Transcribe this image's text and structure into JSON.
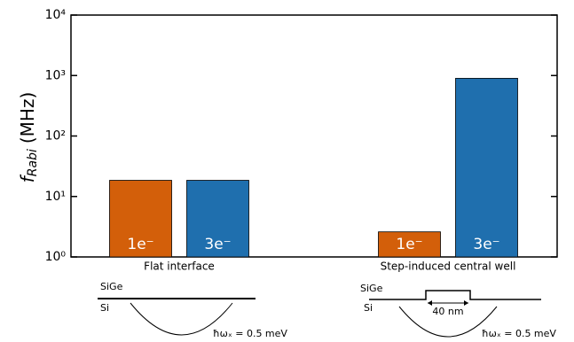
{
  "chart_data": {
    "type": "bar",
    "log_scale": true,
    "y_label": {
      "symbol": "f",
      "subscript": "Rabi",
      "unit": "(MHz)"
    },
    "categories": [
      "Flat interface",
      "Step-induced central well"
    ],
    "series": [
      {
        "name": "1e⁻",
        "color": "#d35f0a",
        "values": [
          18.5,
          2.6
        ]
      },
      {
        "name": "3e⁻",
        "color": "#1f6fae",
        "values": [
          18.5,
          900
        ]
      }
    ],
    "ylim": [
      1,
      10000
    ],
    "yticks": [
      {
        "value": 1,
        "label": "10⁰"
      },
      {
        "value": 10,
        "label": "10¹"
      },
      {
        "value": 100,
        "label": "10²"
      },
      {
        "value": 1000,
        "label": "10³"
      },
      {
        "value": 10000,
        "label": "10⁴"
      }
    ],
    "annotations": {
      "left": {
        "top_layer": "SiGe",
        "bottom_layer": "Si",
        "energy": "ħωₓ = 0.5 meV"
      },
      "right": {
        "top_layer": "SiGe",
        "bottom_layer": "Si",
        "width": "40 nm",
        "energy": "ħωₓ = 0.5 meV"
      }
    }
  }
}
